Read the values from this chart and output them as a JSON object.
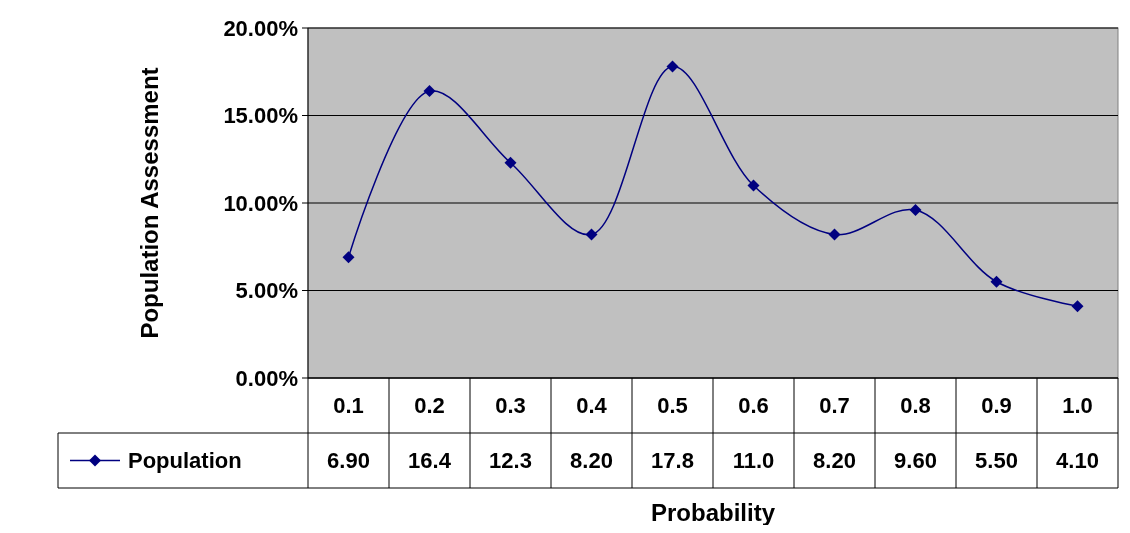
{
  "chart_data": {
    "type": "line",
    "xlabel": "Probability",
    "ylabel": "Population Assessment",
    "categories": [
      "0.1",
      "0.2",
      "0.3",
      "0.4",
      "0.5",
      "0.6",
      "0.7",
      "0.8",
      "0.9",
      "1.0"
    ],
    "series": [
      {
        "name": "Population",
        "color": "#000080",
        "values": [
          6.9,
          16.4,
          12.3,
          8.2,
          17.8,
          11.0,
          8.2,
          9.6,
          5.5,
          4.1
        ],
        "value_labels": [
          "6.90",
          "16.4",
          "12.3",
          "8.20",
          "17.8",
          "11.0",
          "8.20",
          "9.60",
          "5.50",
          "4.10"
        ]
      }
    ],
    "ylim": [
      0,
      20
    ],
    "yticks": [
      {
        "value": 0,
        "label": "0.00%"
      },
      {
        "value": 5,
        "label": "5.00%"
      },
      {
        "value": 10,
        "label": "10.00%"
      },
      {
        "value": 15,
        "label": "15.00%"
      },
      {
        "value": 20,
        "label": "20.00%"
      }
    ],
    "grid": "y",
    "legend": "bottom left",
    "marker": "diamond",
    "line_style": "solid"
  }
}
